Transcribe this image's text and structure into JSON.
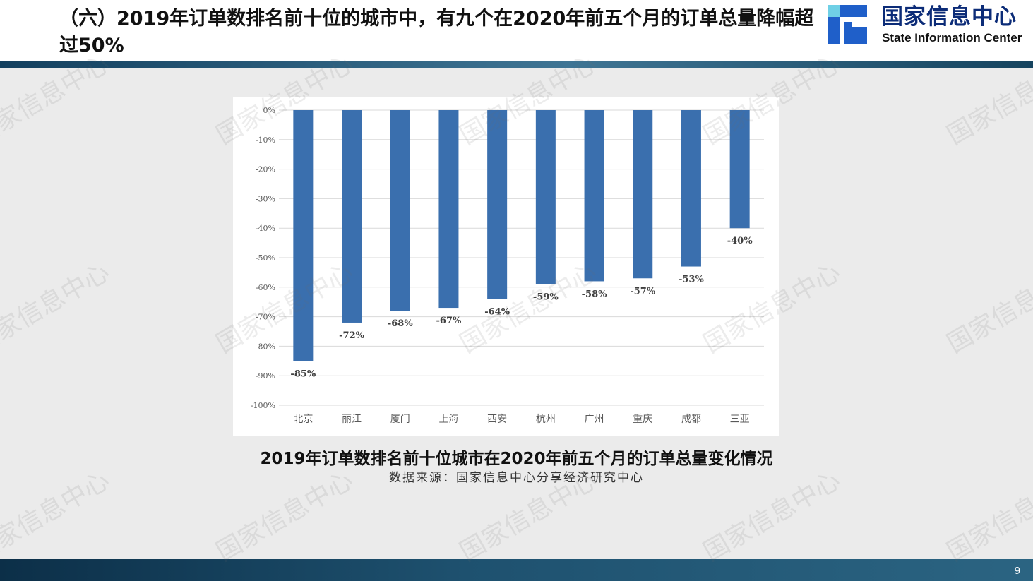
{
  "header": {
    "title": "（六）2019年订单数排名前十位的城市中，有九个在2020年前五个月的订单总量降幅超过50%"
  },
  "logo": {
    "name_cn": "国家信息中心",
    "name_en": "State Information Center"
  },
  "chart_data": {
    "type": "bar",
    "categories": [
      "北京",
      "丽江",
      "厦门",
      "上海",
      "西安",
      "杭州",
      "广州",
      "重庆",
      "成都",
      "三亚"
    ],
    "values": [
      -85,
      -72,
      -68,
      -67,
      -64,
      -59,
      -58,
      -57,
      -53,
      -40
    ],
    "value_labels": [
      "-85%",
      "-72%",
      "-68%",
      "-67%",
      "-64%",
      "-59%",
      "-58%",
      "-57%",
      "-53%",
      "-40%"
    ],
    "y_ticks": [
      "0%",
      "-10%",
      "-20%",
      "-30%",
      "-40%",
      "-50%",
      "-60%",
      "-70%",
      "-80%",
      "-90%",
      "-100%"
    ],
    "ylim": [
      -100,
      0
    ],
    "grid": true,
    "bar_color": "#3a6fae"
  },
  "caption": "2019年订单数排名前十位城市在2020年前五个月的订单总量变化情况",
  "source": "数据来源：国家信息中心分享经济研究中心",
  "page_number": "9",
  "watermark_text": "国家信息中心"
}
